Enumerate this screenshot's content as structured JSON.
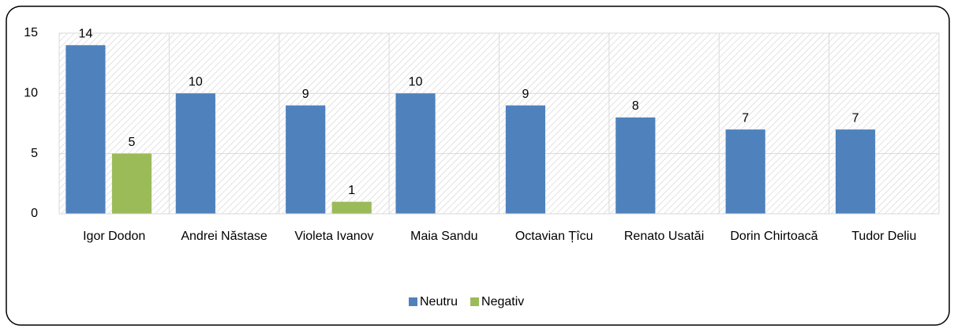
{
  "chart_data": {
    "type": "bar",
    "categories": [
      "Igor Dodon",
      "Andrei Năstase",
      "Violeta Ivanov",
      "Maia Sandu",
      "Octavian Țîcu",
      "Renato Usatăi",
      "Dorin Chirtoacă",
      "Tudor Deliu"
    ],
    "series": [
      {
        "name": "Neutru",
        "color": "#4f81bd",
        "values": [
          14,
          10,
          9,
          10,
          9,
          8,
          7,
          7
        ]
      },
      {
        "name": "Negativ",
        "color": "#9bbb59",
        "values": [
          5,
          null,
          1,
          null,
          null,
          null,
          null,
          null
        ]
      }
    ],
    "ylim": [
      0,
      15
    ],
    "yticks": [
      0,
      5,
      10,
      15
    ],
    "grid": true,
    "legend": "bottom"
  }
}
